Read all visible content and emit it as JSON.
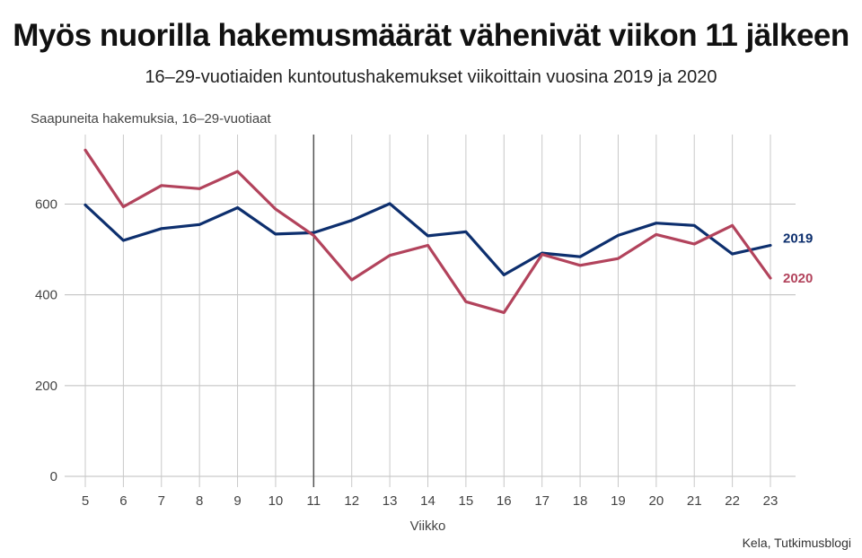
{
  "title": "Myös nuorilla hakemusmäärät vähenivät viikon 11 jälkeen",
  "subtitle": "16–29-vuotiaiden kuntoutushakemukset viikoittain vuosina 2019 ja 2020",
  "source": "Kela, Tutkimusblogi",
  "chart_data": {
    "type": "line",
    "title": "Myös nuorilla hakemusmäärät vähenivät viikon 11 jälkeen",
    "subtitle": "16–29-vuotiaiden kuntoutushakemukset viikoittain vuosina 2019 ja 2020",
    "xlabel": "Viikko",
    "ylabel": "Saapuneita hakemuksia, 16–29-vuotiaat",
    "x": [
      5,
      6,
      7,
      8,
      9,
      10,
      11,
      12,
      13,
      14,
      15,
      16,
      17,
      18,
      19,
      20,
      21,
      22,
      23
    ],
    "yticks": [
      0,
      200,
      400,
      600
    ],
    "ylim": [
      0,
      750
    ],
    "grid": true,
    "marker_week": 11,
    "series": [
      {
        "name": "2019",
        "color": "#0d2f6e",
        "values": [
          598,
          520,
          546,
          555,
          592,
          534,
          537,
          564,
          601,
          530,
          539,
          444,
          492,
          484,
          531,
          558,
          553,
          490,
          509
        ]
      },
      {
        "name": "2020",
        "color": "#b2435c",
        "values": [
          719,
          594,
          641,
          634,
          672,
          589,
          531,
          433,
          487,
          509,
          385,
          361,
          489,
          465,
          480,
          533,
          512,
          553,
          437
        ]
      }
    ]
  }
}
